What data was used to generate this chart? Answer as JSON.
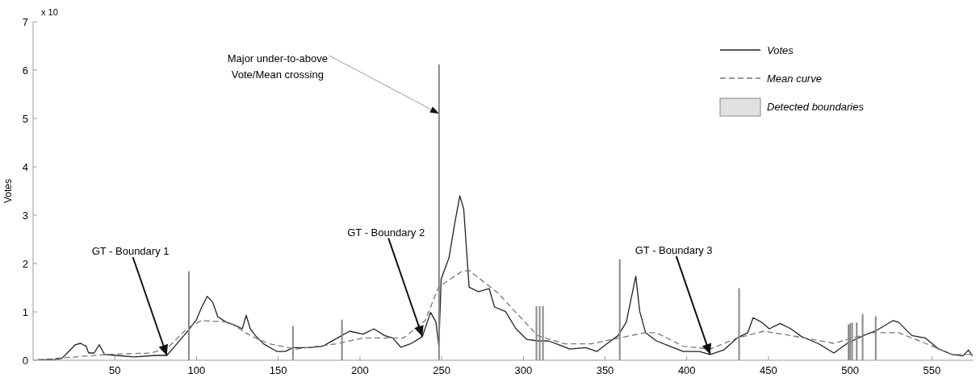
{
  "chart_data": {
    "type": "line",
    "ylabel": "Votes",
    "xlim": [
      0,
      575
    ],
    "xticks": [
      50,
      100,
      150,
      200,
      250,
      300,
      350,
      400,
      450,
      500,
      550
    ],
    "ylim": [
      0,
      7
    ],
    "yticks": [
      0,
      1,
      2,
      3,
      4,
      5,
      6,
      7
    ],
    "legend": "top right",
    "grid": false,
    "series": [
      {
        "name": "Votes",
        "color": "#222222",
        "line_style": "solid",
        "x": [
          2.8,
          12.7,
          17.6,
          20.9,
          25.8,
          29,
          32.4,
          34,
          37.3,
          40.5,
          43.7,
          50.5,
          62,
          75,
          81.8,
          86.7,
          95,
          100,
          103.2,
          106.5,
          109.8,
          113,
          118,
          123,
          128,
          130.4,
          132.9,
          136,
          141,
          149.3,
          154.2,
          159.2,
          169,
          177.3,
          188.8,
          193.7,
          202,
          208.5,
          215.1,
          220,
          225,
          231.6,
          238.2,
          243.2,
          246.5,
          248.3,
          249.7,
          254.5,
          257.8,
          261.1,
          263.5,
          266.8,
          272.5,
          279.1,
          282.4,
          289,
          295.5,
          302.1,
          308.7,
          315.3,
          321.9,
          328.4,
          338.3,
          344.9,
          351.5,
          358,
          363,
          368.8,
          371.2,
          374.8,
          381.4,
          389.6,
          397.8,
          407.7,
          414.3,
          422.5,
          430.8,
          437.3,
          440.6,
          445.6,
          450.5,
          457.1,
          463.7,
          470.2,
          480.1,
          490,
          498.2,
          508.1,
          516.3,
          526.2,
          529.5,
          537.7,
          546,
          554.2,
          562.4,
          569,
          572.3,
          574.8
        ],
        "values": [
          0.01,
          0.01,
          0.04,
          0.15,
          0.32,
          0.35,
          0.29,
          0.15,
          0.15,
          0.32,
          0.12,
          0.1,
          0.07,
          0.1,
          0.1,
          0.29,
          0.62,
          0.84,
          1.1,
          1.32,
          1.21,
          0.9,
          0.79,
          0.73,
          0.65,
          0.93,
          0.65,
          0.51,
          0.34,
          0.18,
          0.18,
          0.26,
          0.26,
          0.29,
          0.51,
          0.6,
          0.54,
          0.65,
          0.51,
          0.46,
          0.27,
          0.35,
          0.49,
          0.99,
          0.79,
          0.29,
          1.68,
          2.12,
          2.79,
          3.4,
          3.13,
          1.51,
          1.42,
          1.48,
          1.1,
          1.01,
          0.65,
          0.43,
          0.4,
          0.4,
          0.32,
          0.23,
          0.26,
          0.18,
          0.35,
          0.51,
          0.79,
          1.74,
          1.01,
          0.57,
          0.4,
          0.29,
          0.18,
          0.18,
          0.12,
          0.21,
          0.46,
          0.57,
          0.88,
          0.79,
          0.65,
          0.76,
          0.65,
          0.49,
          0.35,
          0.15,
          0.35,
          0.51,
          0.62,
          0.82,
          0.79,
          0.51,
          0.46,
          0.23,
          0.12,
          0.09,
          0.21,
          0.09
        ]
      },
      {
        "name": "Mean curve",
        "color": "#777777",
        "line_style": "dashed",
        "x": [
          2.8,
          45.6,
          72,
          81.8,
          88.4,
          95,
          103,
          119.7,
          132.9,
          144.3,
          160.8,
          185.5,
          202,
          226.7,
          239.9,
          248.1,
          262.9,
          267,
          284.1,
          308.7,
          325.1,
          341.6,
          374.5,
          381.4,
          397.8,
          414.3,
          430.8,
          447.3,
          463.7,
          490,
          513,
          529.5,
          546,
          562.4,
          574.8
        ],
        "values": [
          0.01,
          0.12,
          0.15,
          0.24,
          0.46,
          0.68,
          0.82,
          0.79,
          0.51,
          0.34,
          0.23,
          0.34,
          0.46,
          0.46,
          0.82,
          1.51,
          1.85,
          1.85,
          1.4,
          0.51,
          0.34,
          0.34,
          0.57,
          0.57,
          0.29,
          0.23,
          0.46,
          0.6,
          0.51,
          0.35,
          0.57,
          0.57,
          0.35,
          0.12,
          0.12
        ]
      },
      {
        "name": "Detected boundaries",
        "type": "bar",
        "color": "#888888",
        "x": [
          95.3,
          159,
          189,
          248.4,
          308,
          310,
          312,
          359,
          432,
          499,
          500,
          501.2,
          504,
          507.6,
          515.6
        ],
        "values": [
          1.84,
          0.71,
          0.84,
          6.12,
          1.12,
          1.12,
          1.12,
          2.09,
          1.49,
          0.74,
          0.76,
          0.78,
          0.78,
          0.96,
          0.91
        ]
      }
    ],
    "annotations": [
      "x 10",
      {
        "text": "GT - Boundary 1",
        "x": 81.8,
        "y": 0.1
      },
      {
        "text": "GT - Boundary 2",
        "x": 238.2,
        "y": 0.49
      },
      {
        "text": "GT - Boundary 3",
        "x": 414.3,
        "y": 0.12
      },
      {
        "text": "Major under-to-above\nVote/Mean crossing",
        "x": 248.4,
        "y": 5.1
      }
    ]
  }
}
